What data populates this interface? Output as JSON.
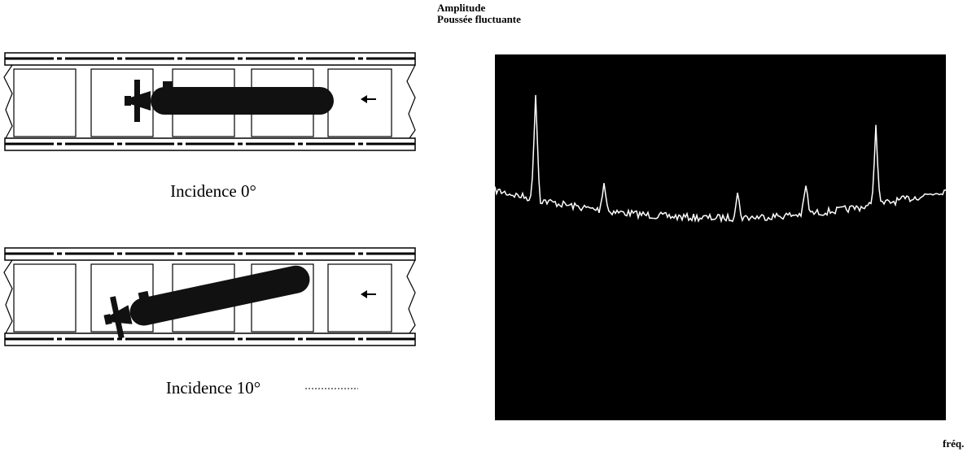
{
  "left_panel": {
    "captions": [
      "Incidence 0°",
      "Incidence 10°"
    ]
  },
  "right_panel": {
    "y_label_lines": [
      "Amplitude",
      "Poussée fluctuante"
    ],
    "x_label": "fréq."
  }
}
